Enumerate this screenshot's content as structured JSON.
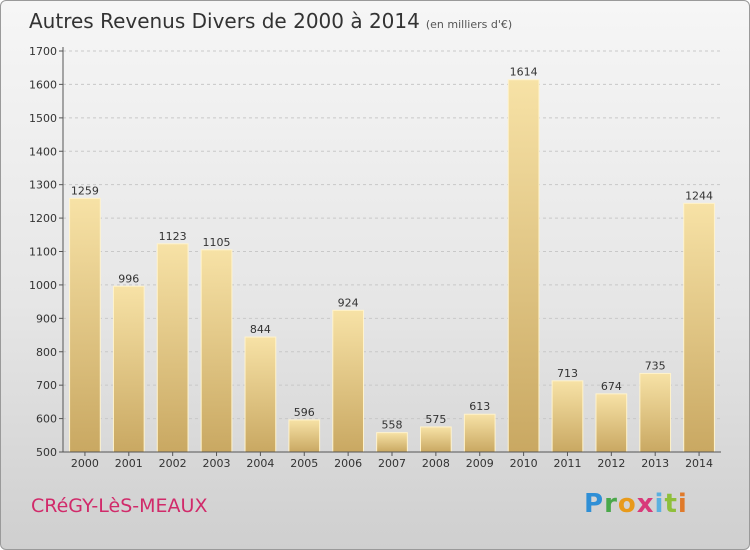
{
  "header": {
    "title": "Autres Revenus Divers de 2000 à 2014",
    "subtitle": "(en milliers d'€)"
  },
  "footer": {
    "commune": "CRéGY-LèS-MEAUX",
    "logo": [
      "P",
      "r",
      "o",
      "x",
      "i",
      "t",
      "i"
    ]
  },
  "chart_data": {
    "type": "bar",
    "title": "Autres Revenus Divers de 2000 à 2014",
    "subtitle": "(en milliers d'€)",
    "categories": [
      "2000",
      "2001",
      "2002",
      "2003",
      "2004",
      "2005",
      "2006",
      "2007",
      "2008",
      "2009",
      "2010",
      "2011",
      "2012",
      "2013",
      "2014"
    ],
    "values": [
      1259,
      996,
      1123,
      1105,
      844,
      596,
      924,
      558,
      575,
      613,
      1614,
      713,
      674,
      735,
      1244
    ],
    "yticks": [
      500,
      600,
      700,
      800,
      900,
      1000,
      1100,
      1200,
      1300,
      1400,
      1500,
      1600,
      1700
    ],
    "ylim": [
      500,
      1700
    ],
    "grid": true,
    "bar_color": "#e8c878"
  }
}
